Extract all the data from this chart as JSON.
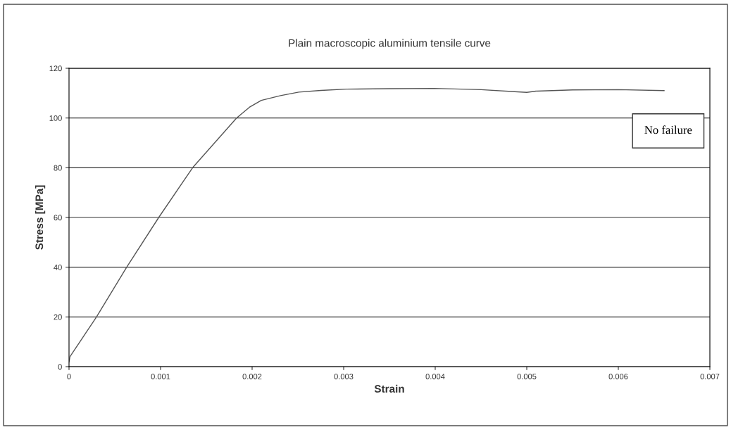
{
  "chart_data": {
    "type": "line",
    "title": "Plain macroscopic aluminium tensile curve",
    "xlabel": "Strain",
    "ylabel": "Stress [MPa]",
    "x": [
      0,
      1e-05,
      0.0003,
      0.00063,
      0.00098,
      0.00135,
      0.00183,
      0.00197,
      0.0021,
      0.00231,
      0.00251,
      0.00275,
      0.00303,
      0.0035,
      0.00399,
      0.0045,
      0.0049,
      0.005,
      0.0051,
      0.0055,
      0.006,
      0.0065
    ],
    "series": [
      {
        "color": "#555555",
        "values": [
          1.9,
          4,
          20,
          40,
          60,
          80,
          100,
          104.3,
          107.1,
          109,
          110.4,
          111.1,
          111.6,
          111.8,
          111.9,
          111.4,
          110.5,
          110.3,
          110.8,
          111.3,
          111.4,
          111
        ]
      }
    ],
    "xlim": [
      0,
      0.007
    ],
    "xticks": [
      0,
      0.001,
      0.002,
      0.003,
      0.004,
      0.005,
      0.006,
      0.007
    ],
    "ylim": [
      0,
      120
    ],
    "yticks": [
      0,
      20,
      40,
      60,
      80,
      100,
      120
    ],
    "grid": "y",
    "legend": false,
    "marker": "none",
    "line_style": "solid",
    "annotations": [
      "No failure"
    ]
  }
}
